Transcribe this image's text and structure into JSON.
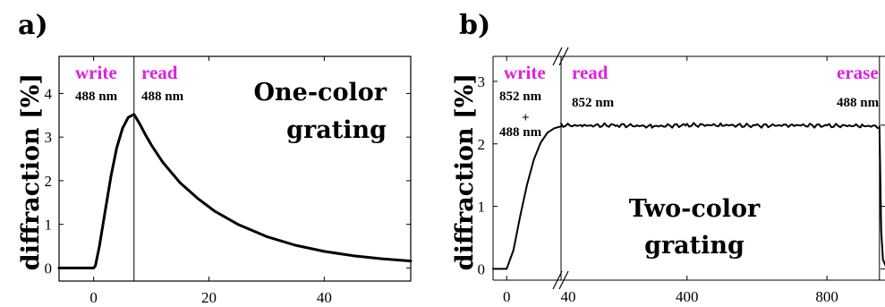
{
  "chart_data": [
    {
      "panel": "a)",
      "type": "line",
      "ylabel": "diffraction [%]",
      "annotation": [
        "One-color",
        "grating"
      ],
      "xlim": [
        -6,
        55
      ],
      "ylim": [
        -0.3,
        4.85
      ],
      "xticks": [
        0,
        20,
        40
      ],
      "yticks": [
        0,
        1,
        2,
        3,
        4
      ],
      "phases": [
        {
          "label": "write",
          "wavelength": "488 nm"
        },
        {
          "label": "read",
          "wavelength": "488 nm"
        }
      ],
      "phase_boundary_x": 7,
      "series": [
        {
          "x": [
            -6,
            0,
            0.3,
            1,
            2,
            3,
            4,
            5,
            6,
            7,
            8,
            9,
            10,
            12,
            15,
            18,
            21,
            25,
            30,
            35,
            40,
            45,
            50,
            55
          ],
          "values": [
            0,
            0,
            0.05,
            0.5,
            1.3,
            2.1,
            2.75,
            3.2,
            3.45,
            3.52,
            3.3,
            3.05,
            2.82,
            2.42,
            1.95,
            1.6,
            1.3,
            1.0,
            0.72,
            0.52,
            0.38,
            0.28,
            0.21,
            0.16
          ]
        }
      ]
    },
    {
      "panel": "b)",
      "type": "line",
      "ylabel": "diffraction [%]",
      "annotation": [
        "Two-color",
        "grating"
      ],
      "ylim": [
        -0.18,
        3.4
      ],
      "xticks": [
        0,
        40,
        400,
        800
      ],
      "yticks": [
        0,
        1,
        2,
        3
      ],
      "axis_break": "//",
      "phases": [
        {
          "label": "write",
          "wavelength": [
            "852 nm",
            "+",
            "488 nm"
          ]
        },
        {
          "label": "read",
          "wavelength": "852 nm"
        },
        {
          "label": "erase",
          "wavelength": "488 nm"
        }
      ],
      "series": [
        {
          "segment_1_x": [
            -10,
            0,
            5,
            10,
            15,
            20,
            25,
            30,
            35,
            40
          ],
          "segment_1_values": [
            0,
            0,
            0.3,
            0.85,
            1.35,
            1.75,
            2.02,
            2.18,
            2.25,
            2.28
          ],
          "segment_2_x": [
            40,
            100,
            200,
            300,
            400,
            500,
            600,
            700,
            800,
            900,
            950
          ],
          "segment_2_values": [
            2.3,
            2.29,
            2.3,
            2.28,
            2.3,
            2.3,
            2.29,
            2.3,
            2.29,
            2.29,
            2.28
          ],
          "segment_3_x": [
            950,
            952,
            955,
            960,
            970,
            990,
            1010,
            1030,
            1040
          ],
          "segment_3_values": [
            2.28,
            1.6,
            0.6,
            0.15,
            0.02,
            -0.01,
            0,
            -0.02,
            0
          ]
        }
      ]
    }
  ]
}
